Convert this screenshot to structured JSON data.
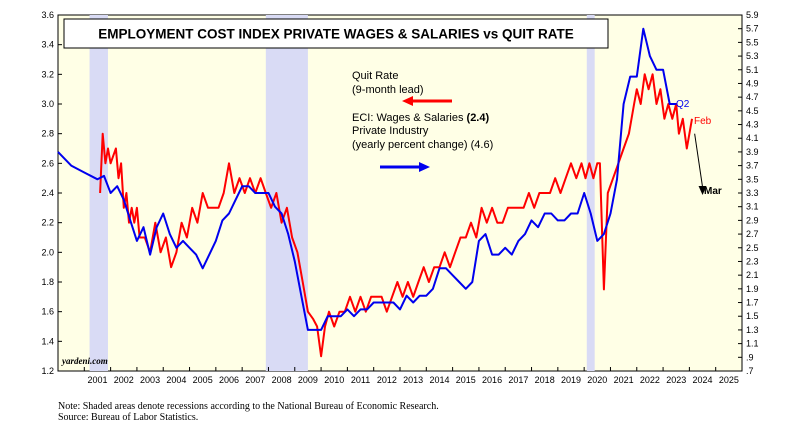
{
  "chart_data": {
    "type": "line",
    "title": "EMPLOYMENT COST INDEX PRIVATE WAGES & SALARIES vs QUIT RATE",
    "x_range": [
      2001,
      2026
    ],
    "y_left_ticks": [
      "1.2",
      "1.4",
      "1.6",
      "1.8",
      "2.0",
      "2.2",
      "2.4",
      "2.6",
      "2.8",
      "3.0",
      "3.2",
      "3.4",
      "3.6"
    ],
    "y_left_range": [
      1.2,
      3.6
    ],
    "y_right_ticks": [
      ".7",
      ".9",
      "1.1",
      "1.3",
      "1.5",
      "1.7",
      "1.9",
      "2.1",
      "2.3",
      "2.5",
      "2.7",
      "2.9",
      "3.1",
      "3.3",
      "3.5",
      "3.7",
      "3.9",
      "4.1",
      "4.3",
      "4.5",
      "4.7",
      "4.9",
      "5.1",
      "5.3",
      "5.5",
      "5.7",
      "5.9"
    ],
    "y_right_range": [
      0.7,
      5.9
    ],
    "x_tick_labels": [
      "2001",
      "2002",
      "2003",
      "2004",
      "2005",
      "2006",
      "2007",
      "2008",
      "2009",
      "2010",
      "2011",
      "2012",
      "2013",
      "2014",
      "2015",
      "2016",
      "2017",
      "2018",
      "2019",
      "2020",
      "2021",
      "2022",
      "2023",
      "2024",
      "2025"
    ],
    "recessions": [
      [
        2001.2,
        2001.9
      ],
      [
        2007.9,
        2009.5
      ],
      [
        2020.1,
        2020.4
      ]
    ],
    "legend": {
      "quit_line1": "Quit Rate",
      "quit_line2": "(9-month lead)",
      "eci_line1": "ECI: Wages & Salaries",
      "eci_value_latest": "(2.4)",
      "eci_line2": "Private Industry",
      "eci_line3": "(yearly percent change)",
      "eci_value_prior": "(4.6)"
    },
    "annotations": {
      "q2": "Q2",
      "feb": "Feb",
      "mar": "Mar"
    },
    "series": [
      {
        "name": "Quit Rate",
        "axis": "left",
        "color": "#ff0000",
        "points": [
          [
            2001.6,
            2.4
          ],
          [
            2001.7,
            2.8
          ],
          [
            2001.8,
            2.6
          ],
          [
            2001.9,
            2.7
          ],
          [
            2002.0,
            2.6
          ],
          [
            2002.1,
            2.65
          ],
          [
            2002.2,
            2.7
          ],
          [
            2002.3,
            2.5
          ],
          [
            2002.4,
            2.6
          ],
          [
            2002.5,
            2.3
          ],
          [
            2002.6,
            2.4
          ],
          [
            2002.7,
            2.2
          ],
          [
            2002.8,
            2.3
          ],
          [
            2002.9,
            2.2
          ],
          [
            2003.0,
            2.3
          ],
          [
            2003.1,
            2.1
          ],
          [
            2003.3,
            2.1
          ],
          [
            2003.5,
            2.0
          ],
          [
            2003.7,
            2.2
          ],
          [
            2003.9,
            2.0
          ],
          [
            2004.1,
            2.1
          ],
          [
            2004.3,
            1.9
          ],
          [
            2004.5,
            2.0
          ],
          [
            2004.7,
            2.2
          ],
          [
            2004.9,
            2.1
          ],
          [
            2005.1,
            2.3
          ],
          [
            2005.3,
            2.2
          ],
          [
            2005.5,
            2.4
          ],
          [
            2005.7,
            2.3
          ],
          [
            2005.9,
            2.3
          ],
          [
            2006.1,
            2.3
          ],
          [
            2006.3,
            2.4
          ],
          [
            2006.5,
            2.6
          ],
          [
            2006.7,
            2.4
          ],
          [
            2006.9,
            2.5
          ],
          [
            2007.1,
            2.4
          ],
          [
            2007.3,
            2.5
          ],
          [
            2007.5,
            2.4
          ],
          [
            2007.7,
            2.5
          ],
          [
            2007.9,
            2.4
          ],
          [
            2008.1,
            2.3
          ],
          [
            2008.3,
            2.4
          ],
          [
            2008.5,
            2.2
          ],
          [
            2008.7,
            2.3
          ],
          [
            2008.9,
            2.1
          ],
          [
            2009.1,
            2.0
          ],
          [
            2009.3,
            1.8
          ],
          [
            2009.5,
            1.6
          ],
          [
            2009.7,
            1.55
          ],
          [
            2009.85,
            1.5
          ],
          [
            2010.0,
            1.3
          ],
          [
            2010.15,
            1.5
          ],
          [
            2010.3,
            1.6
          ],
          [
            2010.5,
            1.5
          ],
          [
            2010.7,
            1.6
          ],
          [
            2010.9,
            1.6
          ],
          [
            2011.1,
            1.7
          ],
          [
            2011.3,
            1.6
          ],
          [
            2011.5,
            1.7
          ],
          [
            2011.7,
            1.6
          ],
          [
            2011.9,
            1.7
          ],
          [
            2012.1,
            1.7
          ],
          [
            2012.3,
            1.7
          ],
          [
            2012.5,
            1.6
          ],
          [
            2012.7,
            1.7
          ],
          [
            2012.9,
            1.8
          ],
          [
            2013.1,
            1.7
          ],
          [
            2013.3,
            1.8
          ],
          [
            2013.5,
            1.7
          ],
          [
            2013.7,
            1.8
          ],
          [
            2013.9,
            1.9
          ],
          [
            2014.1,
            1.8
          ],
          [
            2014.3,
            1.9
          ],
          [
            2014.5,
            1.9
          ],
          [
            2014.7,
            2.0
          ],
          [
            2014.9,
            1.9
          ],
          [
            2015.1,
            2.0
          ],
          [
            2015.3,
            2.1
          ],
          [
            2015.5,
            2.1
          ],
          [
            2015.7,
            2.2
          ],
          [
            2015.9,
            2.1
          ],
          [
            2016.1,
            2.3
          ],
          [
            2016.3,
            2.2
          ],
          [
            2016.5,
            2.3
          ],
          [
            2016.7,
            2.2
          ],
          [
            2016.9,
            2.2
          ],
          [
            2017.1,
            2.3
          ],
          [
            2017.3,
            2.3
          ],
          [
            2017.5,
            2.3
          ],
          [
            2017.7,
            2.3
          ],
          [
            2017.9,
            2.4
          ],
          [
            2018.1,
            2.3
          ],
          [
            2018.3,
            2.4
          ],
          [
            2018.5,
            2.4
          ],
          [
            2018.7,
            2.4
          ],
          [
            2018.9,
            2.5
          ],
          [
            2019.1,
            2.4
          ],
          [
            2019.3,
            2.5
          ],
          [
            2019.5,
            2.6
          ],
          [
            2019.7,
            2.5
          ],
          [
            2019.9,
            2.6
          ],
          [
            2020.05,
            2.5
          ],
          [
            2020.2,
            2.6
          ],
          [
            2020.35,
            2.5
          ],
          [
            2020.5,
            2.6
          ],
          [
            2020.6,
            2.6
          ],
          [
            2020.75,
            1.75
          ],
          [
            2020.9,
            2.4
          ],
          [
            2021.1,
            2.5
          ],
          [
            2021.3,
            2.6
          ],
          [
            2021.5,
            2.7
          ],
          [
            2021.7,
            2.8
          ],
          [
            2021.9,
            3.0
          ],
          [
            2022.0,
            3.1
          ],
          [
            2022.15,
            3.0
          ],
          [
            2022.3,
            3.2
          ],
          [
            2022.45,
            3.1
          ],
          [
            2022.6,
            3.2
          ],
          [
            2022.75,
            3.0
          ],
          [
            2022.9,
            3.1
          ],
          [
            2023.05,
            2.9
          ],
          [
            2023.2,
            3.0
          ],
          [
            2023.35,
            2.9
          ],
          [
            2023.5,
            3.0
          ],
          [
            2023.6,
            2.8
          ],
          [
            2023.75,
            2.9
          ],
          [
            2023.9,
            2.7
          ],
          [
            2024.0,
            2.8
          ],
          [
            2024.1,
            2.9
          ]
        ]
      },
      {
        "name": "ECI: Wages & Salaries Private Industry (yearly percent change)",
        "axis": "right",
        "color": "#0000ee",
        "points": [
          [
            2000.0,
            3.9
          ],
          [
            2000.5,
            3.7
          ],
          [
            2001.0,
            3.6
          ],
          [
            2001.5,
            3.5
          ],
          [
            2001.75,
            3.55
          ],
          [
            2002.0,
            3.3
          ],
          [
            2002.25,
            3.4
          ],
          [
            2002.5,
            3.2
          ],
          [
            2002.75,
            2.9
          ],
          [
            2003.0,
            2.6
          ],
          [
            2003.25,
            2.8
          ],
          [
            2003.5,
            2.4
          ],
          [
            2003.75,
            2.8
          ],
          [
            2004.0,
            3.0
          ],
          [
            2004.25,
            2.7
          ],
          [
            2004.5,
            2.5
          ],
          [
            2004.75,
            2.6
          ],
          [
            2005.0,
            2.5
          ],
          [
            2005.25,
            2.4
          ],
          [
            2005.5,
            2.2
          ],
          [
            2005.75,
            2.4
          ],
          [
            2006.0,
            2.6
          ],
          [
            2006.25,
            2.9
          ],
          [
            2006.5,
            3.0
          ],
          [
            2006.75,
            3.2
          ],
          [
            2007.0,
            3.4
          ],
          [
            2007.25,
            3.4
          ],
          [
            2007.5,
            3.3
          ],
          [
            2007.75,
            3.3
          ],
          [
            2008.0,
            3.3
          ],
          [
            2008.25,
            3.1
          ],
          [
            2008.5,
            3.0
          ],
          [
            2008.75,
            2.7
          ],
          [
            2009.0,
            2.3
          ],
          [
            2009.25,
            1.8
          ],
          [
            2009.5,
            1.3
          ],
          [
            2009.75,
            1.3
          ],
          [
            2010.0,
            1.3
          ],
          [
            2010.25,
            1.5
          ],
          [
            2010.5,
            1.5
          ],
          [
            2010.75,
            1.5
          ],
          [
            2011.0,
            1.6
          ],
          [
            2011.25,
            1.5
          ],
          [
            2011.5,
            1.6
          ],
          [
            2011.75,
            1.6
          ],
          [
            2012.0,
            1.7
          ],
          [
            2012.25,
            1.7
          ],
          [
            2012.5,
            1.7
          ],
          [
            2012.75,
            1.7
          ],
          [
            2013.0,
            1.6
          ],
          [
            2013.25,
            1.8
          ],
          [
            2013.5,
            1.7
          ],
          [
            2013.75,
            1.8
          ],
          [
            2014.0,
            1.8
          ],
          [
            2014.25,
            1.9
          ],
          [
            2014.5,
            2.2
          ],
          [
            2014.75,
            2.2
          ],
          [
            2015.0,
            2.1
          ],
          [
            2015.25,
            2.0
          ],
          [
            2015.5,
            1.9
          ],
          [
            2015.75,
            2.0
          ],
          [
            2016.0,
            2.6
          ],
          [
            2016.25,
            2.7
          ],
          [
            2016.5,
            2.4
          ],
          [
            2016.75,
            2.4
          ],
          [
            2017.0,
            2.5
          ],
          [
            2017.25,
            2.4
          ],
          [
            2017.5,
            2.6
          ],
          [
            2017.75,
            2.7
          ],
          [
            2018.0,
            2.9
          ],
          [
            2018.25,
            2.8
          ],
          [
            2018.5,
            3.0
          ],
          [
            2018.75,
            3.0
          ],
          [
            2019.0,
            2.9
          ],
          [
            2019.25,
            2.9
          ],
          [
            2019.5,
            3.0
          ],
          [
            2019.75,
            3.0
          ],
          [
            2020.0,
            3.3
          ],
          [
            2020.25,
            3.0
          ],
          [
            2020.5,
            2.6
          ],
          [
            2020.75,
            2.7
          ],
          [
            2021.0,
            3.0
          ],
          [
            2021.25,
            3.5
          ],
          [
            2021.5,
            4.6
          ],
          [
            2021.75,
            5.0
          ],
          [
            2022.0,
            5.0
          ],
          [
            2022.25,
            5.7
          ],
          [
            2022.5,
            5.3
          ],
          [
            2022.75,
            5.1
          ],
          [
            2023.0,
            5.1
          ],
          [
            2023.25,
            4.6
          ],
          [
            2023.5,
            4.6
          ]
        ]
      }
    ],
    "arrow": {
      "from": [
        2024.2,
        2.8
      ],
      "to": [
        2024.5,
        2.4
      ]
    }
  },
  "watermark": "yardeni.com",
  "footnote_1": "Note: Shaded areas denote recessions according to the National Bureau of Economic Research.",
  "footnote_2": "Source: Bureau of Labor Statistics."
}
